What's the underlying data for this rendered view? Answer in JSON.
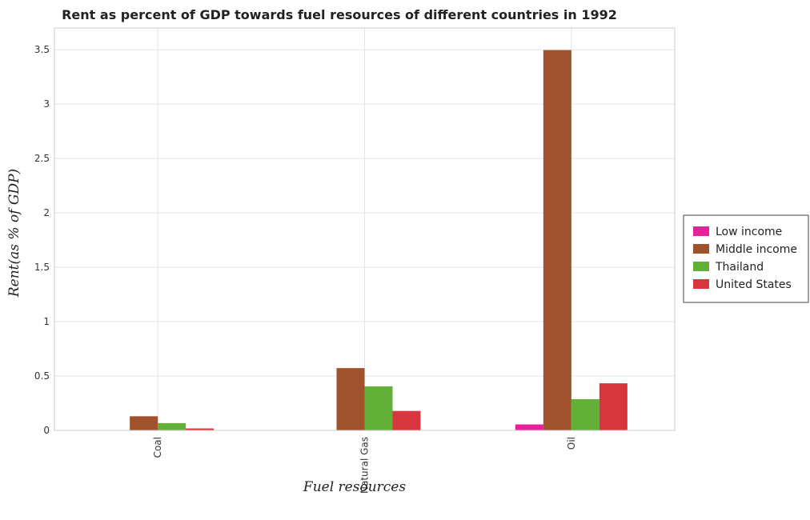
{
  "chart_data": {
    "type": "bar",
    "title": "Rent as percent of GDP towards fuel resources of different countries in 1992",
    "xlabel": "Fuel resources",
    "ylabel": "Rent(as % of GDP)",
    "categories": [
      "Coal",
      "Natural Gas",
      "Oil"
    ],
    "ylim": [
      0,
      3.7
    ],
    "yticks": [
      0,
      0.5,
      1,
      1.5,
      2,
      2.5,
      3,
      3.5
    ],
    "ytick_labels": [
      "0",
      "0.5",
      "1",
      "1.5",
      "2",
      "2.5",
      "3",
      "3.5"
    ],
    "grid": true,
    "legend_position": "right",
    "series": [
      {
        "name": "Low income",
        "color": "#e8219b",
        "values": [
          0.0002,
          0.0003,
          0.055
        ]
      },
      {
        "name": "Middle income",
        "color": "#a0522d",
        "values": [
          0.13,
          0.573,
          3.497
        ]
      },
      {
        "name": "Thailand",
        "color": "#62b037",
        "values": [
          0.067,
          0.405,
          0.287
        ]
      },
      {
        "name": "United States",
        "color": "#d8363e",
        "values": [
          0.018,
          0.179,
          0.433
        ]
      }
    ]
  }
}
